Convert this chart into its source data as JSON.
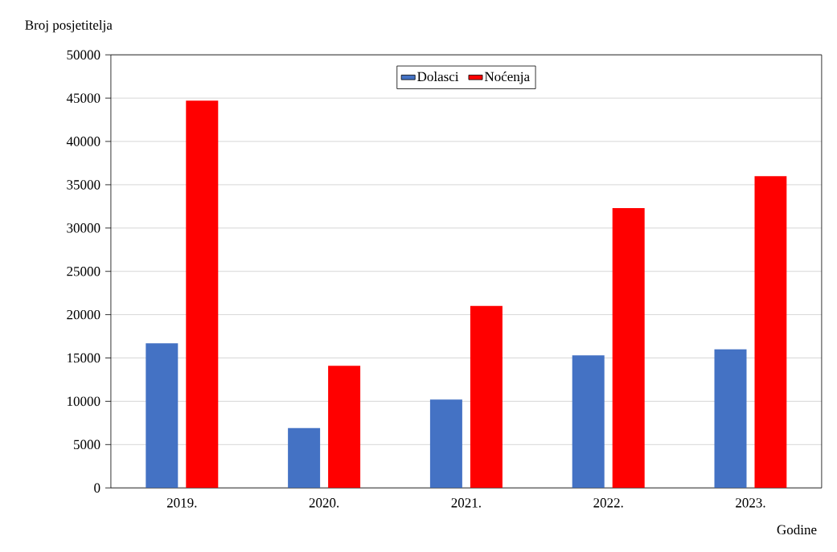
{
  "chart_data": {
    "type": "bar",
    "ylabel": "Broj posjetitelja",
    "xlabel": "Godine",
    "categories": [
      "2019.",
      "2020.",
      "2021.",
      "2022.",
      "2023."
    ],
    "series": [
      {
        "name": "Dolasci",
        "color": "#4472c4",
        "values": [
          16700,
          6900,
          10200,
          15300,
          16000
        ]
      },
      {
        "name": "Noćenja",
        "color": "#ff0000",
        "values": [
          44700,
          14100,
          21000,
          32300,
          36000
        ]
      }
    ],
    "ylim": [
      0,
      50000
    ],
    "yticks": [
      0,
      5000,
      10000,
      15000,
      20000,
      25000,
      30000,
      35000,
      40000,
      45000,
      50000
    ],
    "grid": "y",
    "legend": "top"
  }
}
